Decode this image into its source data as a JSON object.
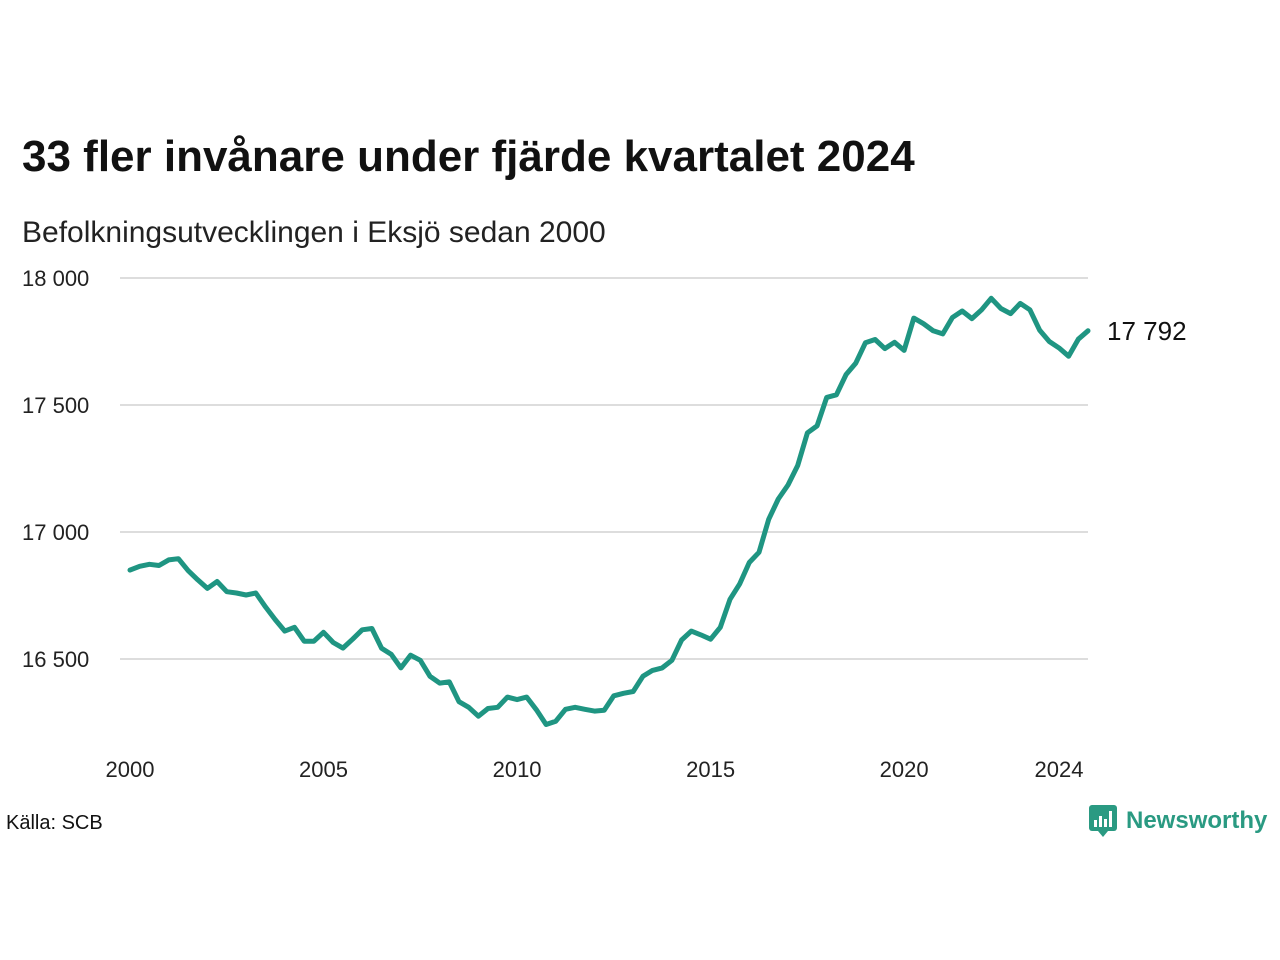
{
  "title": "33 fler invånare under fjärde kvartalet 2024",
  "subtitle": "Befolkningsutvecklingen i Eksjö sedan 2000",
  "source": "Källa: SCB",
  "brand": "Newsworthy",
  "colors": {
    "line": "#1f9582",
    "grid": "#dddddd",
    "brand": "#2a9a82"
  },
  "chart_data": {
    "type": "line",
    "xlabel": "",
    "ylabel": "",
    "ylim": [
      16200,
      18000
    ],
    "yticks": [
      16500,
      17000,
      17500,
      18000
    ],
    "ytick_labels": [
      "16 500",
      "17 000",
      "17 500",
      "18 000"
    ],
    "xticks": [
      2000,
      2005,
      2010,
      2015,
      2020,
      2024
    ],
    "xtick_labels": [
      "2000",
      "2005",
      "2010",
      "2015",
      "2020",
      "2024"
    ],
    "end_label": "17 792",
    "grid": true,
    "series": [
      {
        "x": [
          2000.0,
          2000.25,
          2000.5,
          2000.75,
          2001.0,
          2001.25,
          2001.5,
          2001.75,
          2002.0,
          2002.25,
          2002.5,
          2002.75,
          2003.0,
          2003.25,
          2003.5,
          2003.75,
          2004.0,
          2004.25,
          2004.5,
          2004.75,
          2005.0,
          2005.25,
          2005.5,
          2005.75,
          2006.0,
          2006.25,
          2006.5,
          2006.75,
          2007.0,
          2007.25,
          2007.5,
          2007.75,
          2008.0,
          2008.25,
          2008.5,
          2008.75,
          2009.0,
          2009.25,
          2009.5,
          2009.75,
          2010.0,
          2010.25,
          2010.5,
          2010.75,
          2011.0,
          2011.25,
          2011.5,
          2011.75,
          2012.0,
          2012.25,
          2012.5,
          2012.75,
          2013.0,
          2013.25,
          2013.5,
          2013.75,
          2014.0,
          2014.25,
          2014.5,
          2014.75,
          2015.0,
          2015.25,
          2015.5,
          2015.75,
          2016.0,
          2016.25,
          2016.5,
          2016.75,
          2017.0,
          2017.25,
          2017.5,
          2017.75,
          2018.0,
          2018.25,
          2018.5,
          2018.75,
          2019.0,
          2019.25,
          2019.5,
          2019.75,
          2020.0,
          2020.25,
          2020.5,
          2020.75,
          2021.0,
          2021.25,
          2021.5,
          2021.75,
          2022.0,
          2022.25,
          2022.5,
          2022.75,
          2023.0,
          2023.25,
          2023.5,
          2023.75,
          2024.0,
          2024.25,
          2024.5,
          2024.75
        ],
        "values": [
          16850,
          16865,
          16873,
          16868,
          16890,
          16895,
          16848,
          16812,
          16778,
          16805,
          16765,
          16760,
          16752,
          16760,
          16705,
          16655,
          16610,
          16625,
          16570,
          16570,
          16605,
          16565,
          16543,
          16578,
          16615,
          16620,
          16542,
          16518,
          16465,
          16515,
          16495,
          16432,
          16405,
          16410,
          16332,
          16310,
          16275,
          16305,
          16310,
          16350,
          16340,
          16350,
          16300,
          16242,
          16255,
          16302,
          16310,
          16302,
          16295,
          16298,
          16355,
          16365,
          16372,
          16432,
          16455,
          16465,
          16495,
          16575,
          16610,
          16595,
          16578,
          16625,
          16735,
          16795,
          16880,
          16920,
          17050,
          17130,
          17185,
          17262,
          17390,
          17418,
          17530,
          17540,
          17620,
          17665,
          17745,
          17758,
          17722,
          17747,
          17715,
          17842,
          17820,
          17792,
          17780,
          17845,
          17870,
          17840,
          17875,
          17920,
          17880,
          17860,
          17900,
          17875,
          17795,
          17750,
          17725,
          17692,
          17759,
          17792
        ]
      }
    ]
  }
}
